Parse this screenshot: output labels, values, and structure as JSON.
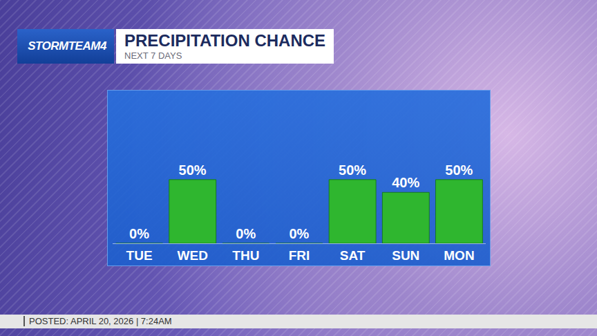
{
  "chart_data": {
    "type": "bar",
    "logo": "STORMTEAM4",
    "title": "PRECIPITATION CHANCE",
    "subtitle": "NEXT 7 DAYS",
    "footer": "POSTED: APRIL 20, 2026 | 7:24AM",
    "categories": [
      "TUE",
      "WED",
      "THU",
      "FRI",
      "SAT",
      "SUN",
      "MON"
    ],
    "values": [
      0,
      50,
      0,
      0,
      50,
      40,
      50
    ],
    "value_labels": [
      "0%",
      "50%",
      "0%",
      "0%",
      "50%",
      "40%",
      "50%"
    ],
    "color": "#2fb62f",
    "data_labels": true,
    "tick_labels": "x",
    "grid": false
  }
}
